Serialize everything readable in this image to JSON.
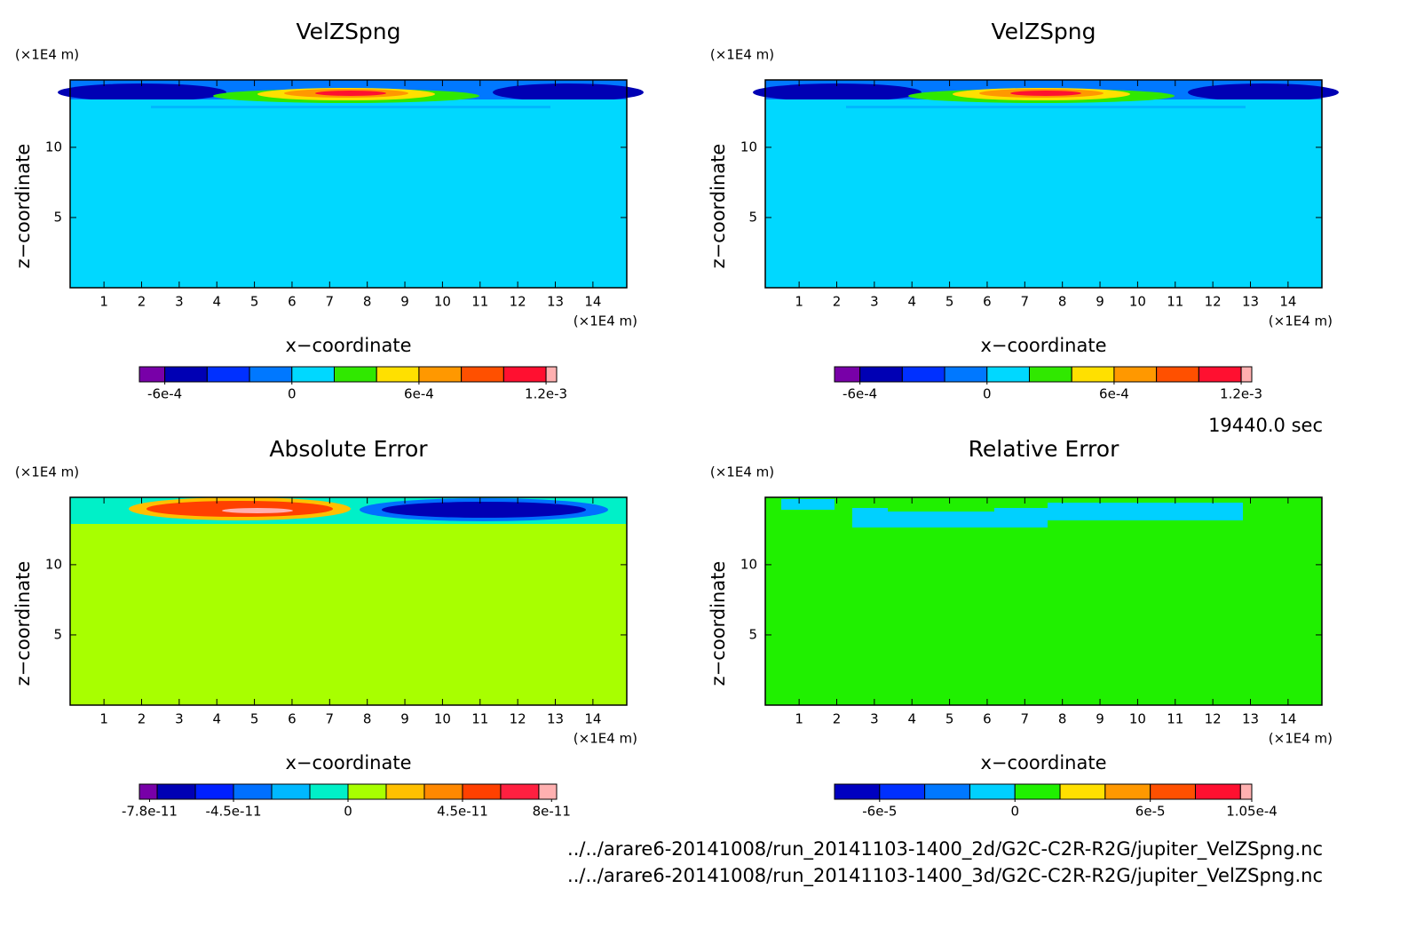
{
  "chart_data": [
    {
      "type": "contour",
      "title": "VelZSpng",
      "xlabel": "x−coordinate",
      "ylabel": "z−coordinate",
      "x_unit": "(×1E4 m)",
      "y_unit": "(×1E4 m)",
      "xlim": [
        0.1,
        14.9
      ],
      "ylim": [
        0,
        14.8
      ],
      "xticks": [
        1,
        2,
        3,
        4,
        5,
        6,
        7,
        8,
        9,
        10,
        11,
        12,
        13,
        14
      ],
      "yticks": [
        5,
        10
      ],
      "fill_color": "#00d8ff",
      "colorbar": {
        "bounds": [
          -0.00072,
          -0.0006,
          -0.0004,
          -0.0002,
          0,
          0.0002,
          0.0004,
          0.0006,
          0.0008,
          0.001,
          0.0012,
          0.00125
        ],
        "colors": [
          "#7800a8",
          "#0000b4",
          "#0030ff",
          "#0078ff",
          "#00d8ff",
          "#30e800",
          "#ffe000",
          "#ff9800",
          "#ff5000",
          "#ff1030",
          "#ffb0b0"
        ],
        "ticks": [
          {
            "value": -0.0006,
            "label": "-6e-4"
          },
          0,
          {
            "value": 0.0006,
            "label": "6e-4"
          },
          {
            "value": 0.0012,
            "label": "1.2e-3"
          }
        ]
      }
    },
    {
      "type": "contour",
      "title": "VelZSpng",
      "xlabel": "x−coordinate",
      "ylabel": "z−coordinate",
      "x_unit": "(×1E4 m)",
      "y_unit": "(×1E4 m)",
      "xlim": [
        0.1,
        14.9
      ],
      "ylim": [
        0,
        14.8
      ],
      "xticks": [
        1,
        2,
        3,
        4,
        5,
        6,
        7,
        8,
        9,
        10,
        11,
        12,
        13,
        14
      ],
      "yticks": [
        5,
        10
      ],
      "fill_color": "#00d8ff",
      "colorbar": {
        "bounds": [
          -0.00072,
          -0.0006,
          -0.0004,
          -0.0002,
          0,
          0.0002,
          0.0004,
          0.0006,
          0.0008,
          0.001,
          0.0012,
          0.00125
        ],
        "colors": [
          "#7800a8",
          "#0000b4",
          "#0030ff",
          "#0078ff",
          "#00d8ff",
          "#30e800",
          "#ffe000",
          "#ff9800",
          "#ff5000",
          "#ff1030",
          "#ffb0b0"
        ],
        "ticks": [
          {
            "value": -0.0006,
            "label": "-6e-4"
          },
          0,
          {
            "value": 0.0006,
            "label": "6e-4"
          },
          {
            "value": 0.0012,
            "label": "1.2e-3"
          }
        ]
      }
    },
    {
      "type": "contour",
      "title": "Absolute Error",
      "xlabel": "x−coordinate",
      "ylabel": "z−coordinate",
      "x_unit": "(×1E4 m)",
      "y_unit": "(×1E4 m)",
      "xlim": [
        0.1,
        14.9
      ],
      "ylim": [
        0,
        14.8
      ],
      "xticks": [
        1,
        2,
        3,
        4,
        5,
        6,
        7,
        8,
        9,
        10,
        11,
        12,
        13,
        14
      ],
      "yticks": [
        5,
        10
      ],
      "fill_color": "#a8ff00",
      "colorbar": {
        "bounds": [
          -8.2e-11,
          -7.5e-11,
          -6e-11,
          -4.5e-11,
          -3e-11,
          -1.5e-11,
          0,
          1.5e-11,
          3e-11,
          4.5e-11,
          6e-11,
          7.5e-11,
          8.2e-11
        ],
        "colors": [
          "#7800a8",
          "#0000b4",
          "#0020ff",
          "#0070ff",
          "#00b8ff",
          "#00f0c8",
          "#a8ff00",
          "#ffc000",
          "#ff8800",
          "#ff4000",
          "#ff2040",
          "#ffb0b0"
        ],
        "ticks": [
          {
            "value": -7.8e-11,
            "label": "-7.8e-11"
          },
          {
            "value": -4.5e-11,
            "label": "-4.5e-11"
          },
          0,
          {
            "value": 4.5e-11,
            "label": "4.5e-11"
          },
          {
            "value": 8e-11,
            "label": "8e-11"
          }
        ]
      }
    },
    {
      "type": "contour",
      "title": "Relative Error",
      "xlabel": "x−coordinate",
      "ylabel": "z−coordinate",
      "x_unit": "(×1E4 m)",
      "y_unit": "(×1E4 m)",
      "xlim": [
        0.1,
        14.9
      ],
      "ylim": [
        0,
        14.8
      ],
      "xticks": [
        1,
        2,
        3,
        4,
        5,
        6,
        7,
        8,
        9,
        10,
        11,
        12,
        13,
        14
      ],
      "yticks": [
        5,
        10
      ],
      "fill_color": "#20f000",
      "colorbar": {
        "bounds": [
          -8e-05,
          -6e-05,
          -4e-05,
          -2e-05,
          0,
          2e-05,
          4e-05,
          6e-05,
          8e-05,
          0.0001,
          0.000105
        ],
        "colors": [
          "#0000c0",
          "#0030ff",
          "#0078ff",
          "#00d0ff",
          "#20f000",
          "#ffe000",
          "#ff9800",
          "#ff5000",
          "#ff1030",
          "#ffb0b0"
        ],
        "ticks": [
          {
            "value": -6e-05,
            "label": "-6e-5"
          },
          0,
          {
            "value": 6e-05,
            "label": "6e-5"
          },
          {
            "value": 0.000105,
            "label": "1.05e-4"
          }
        ]
      }
    }
  ],
  "annotation": "19440.0 sec",
  "files": [
    "../../arare6-20141008/run_20141103-1400_2d/G2C-C2R-R2G/jupiter_VelZSpng.nc",
    "../../arare6-20141008/run_20141103-1400_3d/G2C-C2R-R2G/jupiter_VelZSpng.nc"
  ]
}
